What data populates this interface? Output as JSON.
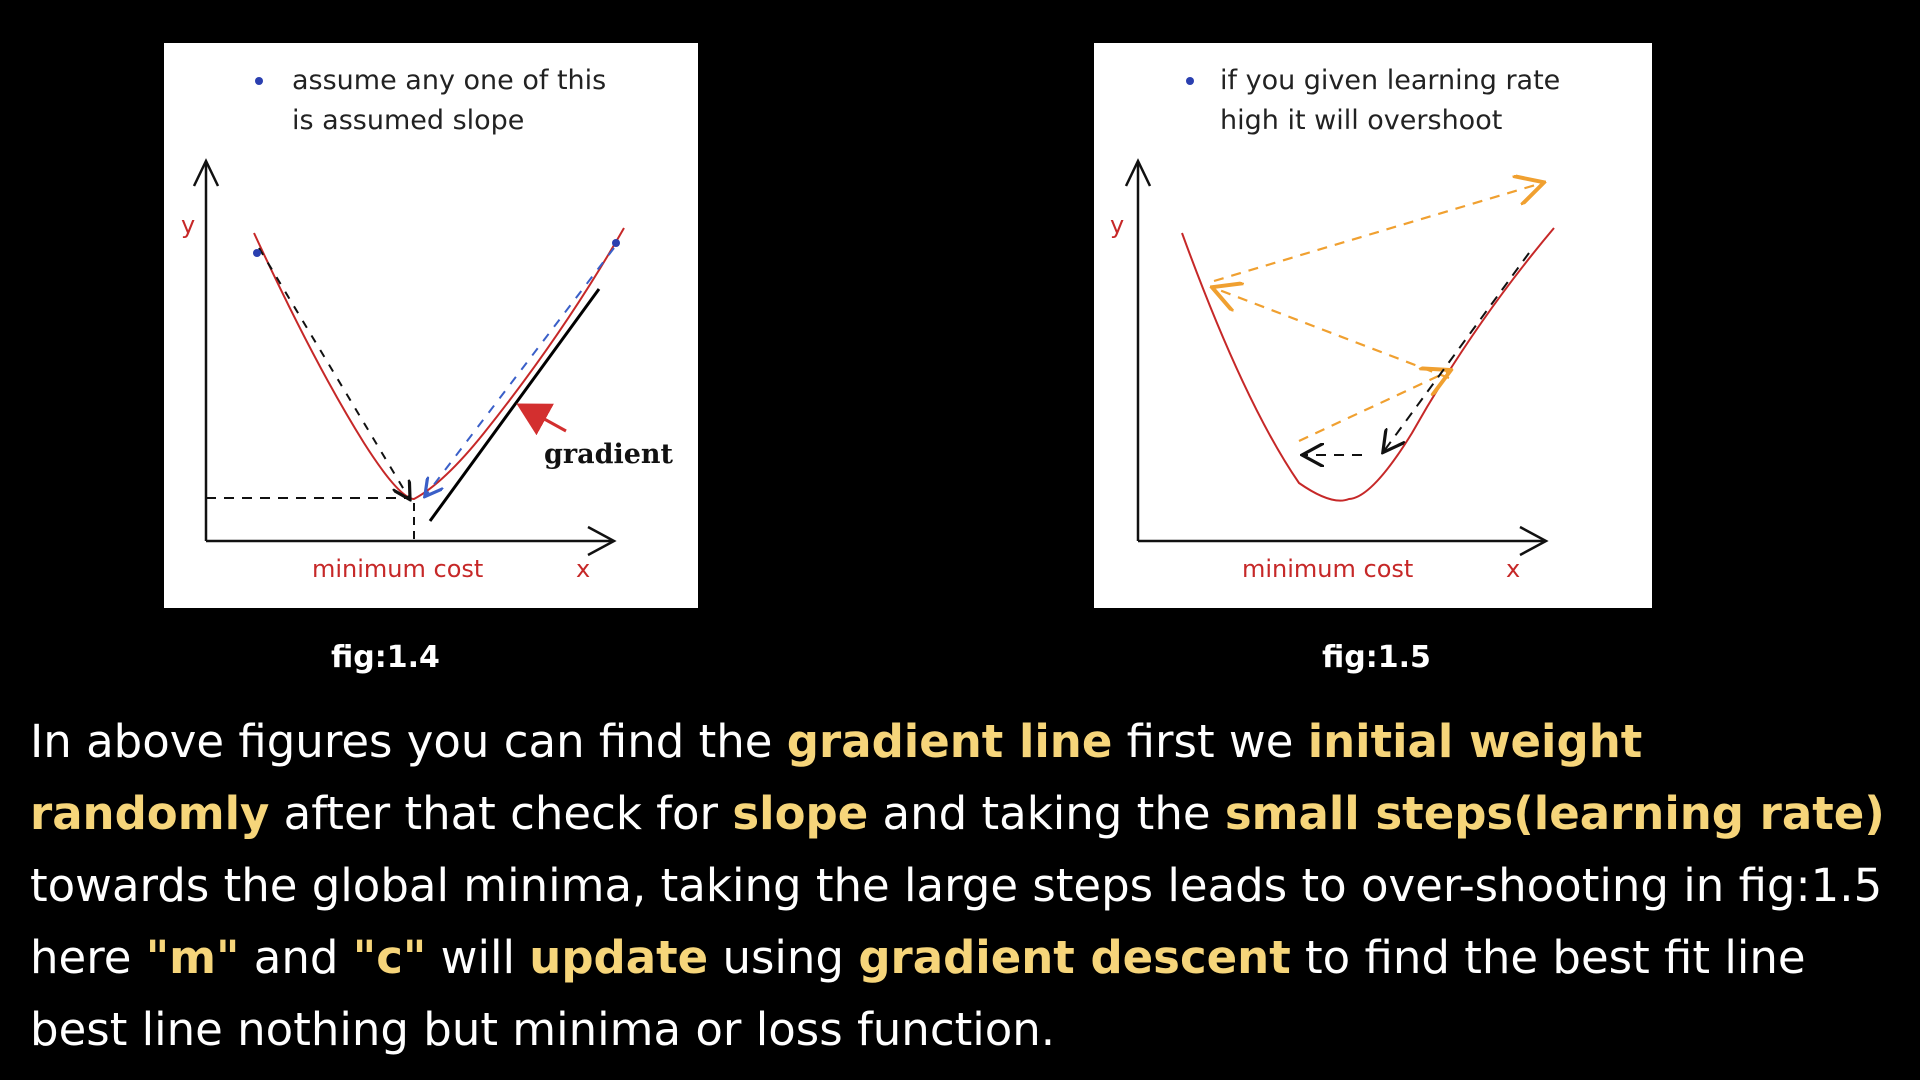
{
  "figures": [
    {
      "caption": "fig:1.4",
      "note_line1": "assume any one of this",
      "note_line2": "is assumed slope",
      "y_label": "y",
      "x_label": "x",
      "x_axis_title": "minimum cost",
      "annotation": "gradient"
    },
    {
      "caption": "fig:1.5",
      "note_line1": "if you given learning rate",
      "note_line2": "high it will overshoot",
      "y_label": "y",
      "x_label": "x",
      "x_axis_title": "minimum cost"
    }
  ],
  "description": [
    {
      "text": "In above figures you can find the ",
      "highlight": false
    },
    {
      "text": "gradient line",
      "highlight": true
    },
    {
      "text": "  first we ",
      "highlight": false
    },
    {
      "text": "initial weight randomly",
      "highlight": true
    },
    {
      "text": " after that check for ",
      "highlight": false
    },
    {
      "text": "slope",
      "highlight": true
    },
    {
      "text": " and taking the ",
      "highlight": false
    },
    {
      "text": "small steps(learning rate)",
      "highlight": true
    },
    {
      "text": " towards the global minima, taking the large steps leads to over-shooting in fig:1.5 here ",
      "highlight": false
    },
    {
      "text": "\"m\"",
      "highlight": true
    },
    {
      "text": " and ",
      "highlight": false
    },
    {
      "text": "\"c\"",
      "highlight": true
    },
    {
      "text": " will ",
      "highlight": false
    },
    {
      "text": "update",
      "highlight": true
    },
    {
      "text": " using ",
      "highlight": false
    },
    {
      "text": "gradient descent",
      "highlight": true
    },
    {
      "text": " to find the best fit line best line nothing but minima or loss function.",
      "highlight": false
    }
  ],
  "colors": {
    "background": "#000000",
    "highlight": "#f6d57a",
    "curve": "#c62828",
    "blue_steps": "#3a5fc8",
    "orange_steps": "#f0a030",
    "note_dot": "#2a3fb0"
  }
}
